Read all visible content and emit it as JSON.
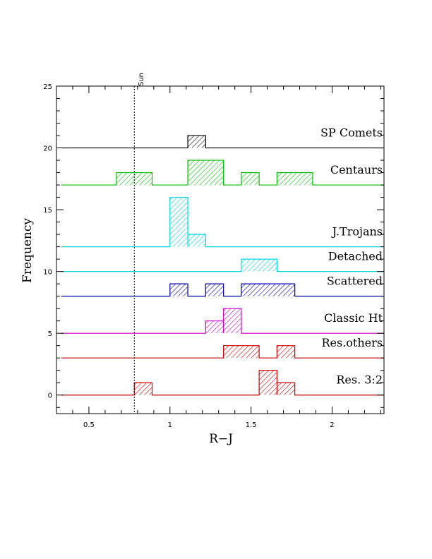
{
  "chart_data": {
    "type": "histogram",
    "xlabel": "R−J",
    "ylabel": "Frequency",
    "xlim": [
      0.3,
      2.32
    ],
    "ylim": [
      -1.5,
      25
    ],
    "xticks": [
      0.5,
      1,
      1.5,
      2
    ],
    "xtick_labels": [
      "0.5",
      "1",
      "1.5",
      "2"
    ],
    "yticks": [
      0,
      5,
      10,
      15,
      20,
      25
    ],
    "ytick_labels": [
      "0",
      "5",
      "10",
      "15",
      "20",
      "25"
    ],
    "reference_line": {
      "label": "Sun",
      "x": 0.78,
      "style": "dashed"
    },
    "series": [
      {
        "name": "SP Comets",
        "offset": 20,
        "color": "#000000",
        "x_start": 0.33,
        "x_end": 2.32,
        "bins": [
          {
            "x0": 1.11,
            "x1": 1.22,
            "count": 1
          }
        ]
      },
      {
        "name": "Centaurs",
        "offset": 17,
        "color": "#00c000",
        "x_start": 0.33,
        "x_end": 2.32,
        "bins": [
          {
            "x0": 0.67,
            "x1": 0.89,
            "count": 1
          },
          {
            "x0": 1.11,
            "x1": 1.33,
            "count": 2
          },
          {
            "x0": 1.44,
            "x1": 1.55,
            "count": 1
          },
          {
            "x0": 1.66,
            "x1": 1.88,
            "count": 1
          }
        ]
      },
      {
        "name": "J.Trojans",
        "offset": 12,
        "color": "#00d8e0",
        "x_start": 0.33,
        "x_end": 2.32,
        "bins": [
          {
            "x0": 1.0,
            "x1": 1.11,
            "count": 4
          },
          {
            "x0": 1.11,
            "x1": 1.22,
            "count": 1
          }
        ]
      },
      {
        "name": "Detached",
        "offset": 10,
        "color": "#00d8e0",
        "x_start": 0.33,
        "x_end": 2.32,
        "bins": [
          {
            "x0": 1.44,
            "x1": 1.66,
            "count": 1
          }
        ]
      },
      {
        "name": "Scattered",
        "offset": 8,
        "color": "#0000b0",
        "x_start": 0.33,
        "x_end": 2.32,
        "bins": [
          {
            "x0": 1.0,
            "x1": 1.11,
            "count": 1
          },
          {
            "x0": 1.22,
            "x1": 1.33,
            "count": 1
          },
          {
            "x0": 1.44,
            "x1": 1.77,
            "count": 1
          }
        ]
      },
      {
        "name": "Classic Ht",
        "offset": 5,
        "color": "#d000d0",
        "x_start": 0.33,
        "x_end": 2.32,
        "bins": [
          {
            "x0": 1.22,
            "x1": 1.33,
            "count": 1
          },
          {
            "x0": 1.33,
            "x1": 1.44,
            "count": 2
          }
        ]
      },
      {
        "name": "Res.others",
        "offset": 3,
        "color": "#d00000",
        "x_start": 0.33,
        "x_end": 2.32,
        "bins": [
          {
            "x0": 1.33,
            "x1": 1.55,
            "count": 1
          },
          {
            "x0": 1.66,
            "x1": 1.77,
            "count": 1
          }
        ]
      },
      {
        "name": "Res. 3:2",
        "offset": 0,
        "color": "#d00000",
        "x_start": 0.33,
        "x_end": 2.32,
        "bins": [
          {
            "x0": 0.78,
            "x1": 0.89,
            "count": 1
          },
          {
            "x0": 1.55,
            "x1": 1.66,
            "count": 2
          },
          {
            "x0": 1.66,
            "x1": 1.77,
            "count": 1
          }
        ]
      }
    ]
  }
}
